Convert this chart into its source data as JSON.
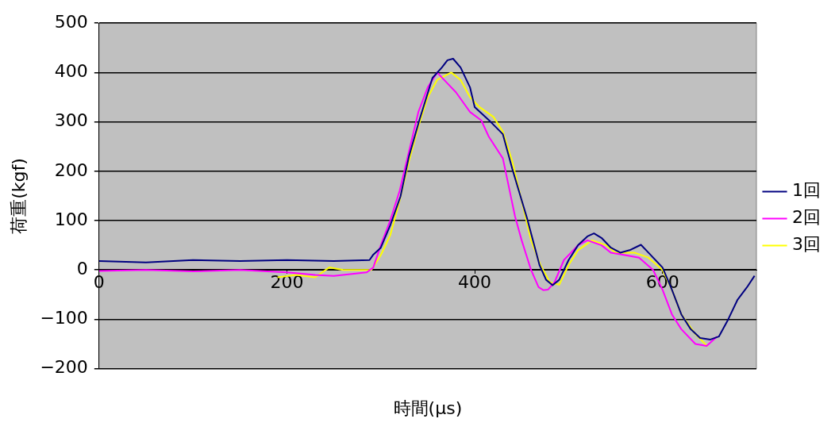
{
  "chart_data": {
    "type": "line",
    "xlabel": "時間(μs)",
    "ylabel": "荷重(kgf)",
    "xlim": [
      0,
      700
    ],
    "xticks": [
      0,
      200,
      400,
      600
    ],
    "ylim": [
      -200,
      500
    ],
    "yticks": [
      -200,
      -100,
      0,
      100,
      200,
      300,
      400,
      500
    ],
    "grid": "y",
    "legend": "right",
    "marker": "none",
    "line_style": "solid",
    "series": [
      {
        "name": "1回",
        "color": "#000080",
        "x": [
          0,
          50,
          100,
          150,
          200,
          250,
          288,
          292,
          300,
          310,
          321,
          330,
          341,
          355,
          365,
          371,
          377,
          385,
          395,
          400,
          417,
          430,
          440,
          456,
          469,
          476,
          483,
          490,
          500,
          510,
          520,
          527,
          535,
          545,
          555,
          565,
          577,
          585,
          600,
          610,
          620,
          630,
          640,
          651,
          660,
          670,
          680,
          690,
          698
        ],
        "values": [
          18,
          15,
          20,
          18,
          20,
          18,
          20,
          31,
          45,
          90,
          149,
          230,
          303,
          389,
          410,
          425,
          428,
          410,
          370,
          330,
          300,
          275,
          205,
          103,
          10,
          -20,
          -31,
          -20,
          20,
          50,
          68,
          74,
          65,
          45,
          35,
          40,
          51,
          35,
          5,
          -40,
          -90,
          -120,
          -138,
          -141,
          -135,
          -100,
          -60,
          -35,
          -12
        ]
      },
      {
        "name": "2回",
        "color": "#ff00ff",
        "x": [
          0,
          50,
          100,
          150,
          200,
          230,
          250,
          285,
          292,
          300,
          310,
          320,
          330,
          340,
          350,
          360,
          370,
          380,
          395,
          407,
          415,
          430,
          443,
          450,
          460,
          468,
          473,
          478,
          485,
          495,
          510,
          520,
          535,
          545,
          560,
          575,
          590,
          600,
          610,
          620,
          635,
          647,
          658
        ],
        "values": [
          -2,
          0,
          -3,
          0,
          -5,
          -10,
          -12,
          -5,
          5,
          50,
          100,
          160,
          240,
          320,
          370,
          400,
          380,
          360,
          320,
          303,
          270,
          226,
          108,
          60,
          0,
          -35,
          -41,
          -40,
          -25,
          20,
          50,
          60,
          50,
          35,
          30,
          25,
          0,
          -40,
          -90,
          -120,
          -150,
          -154,
          -135
        ]
      },
      {
        "name": "3回",
        "color": "#ffff00",
        "x": [
          190,
          210,
          230,
          245,
          260,
          280,
          290,
          300,
          310,
          320,
          330,
          340,
          350,
          360,
          375,
          385,
          395,
          405,
          420,
          430,
          440,
          450,
          460,
          470,
          480,
          490,
          500,
          510,
          525,
          540,
          550,
          570,
          585,
          600,
          610,
          620,
          635,
          648
        ],
        "values": [
          -15,
          -10,
          -15,
          5,
          0,
          0,
          0,
          30,
          70,
          140,
          220,
          290,
          350,
          385,
          400,
          385,
          350,
          330,
          310,
          280,
          220,
          140,
          60,
          10,
          -25,
          -30,
          10,
          40,
          60,
          50,
          35,
          35,
          25,
          0,
          -40,
          -90,
          -130,
          -155
        ]
      }
    ]
  }
}
